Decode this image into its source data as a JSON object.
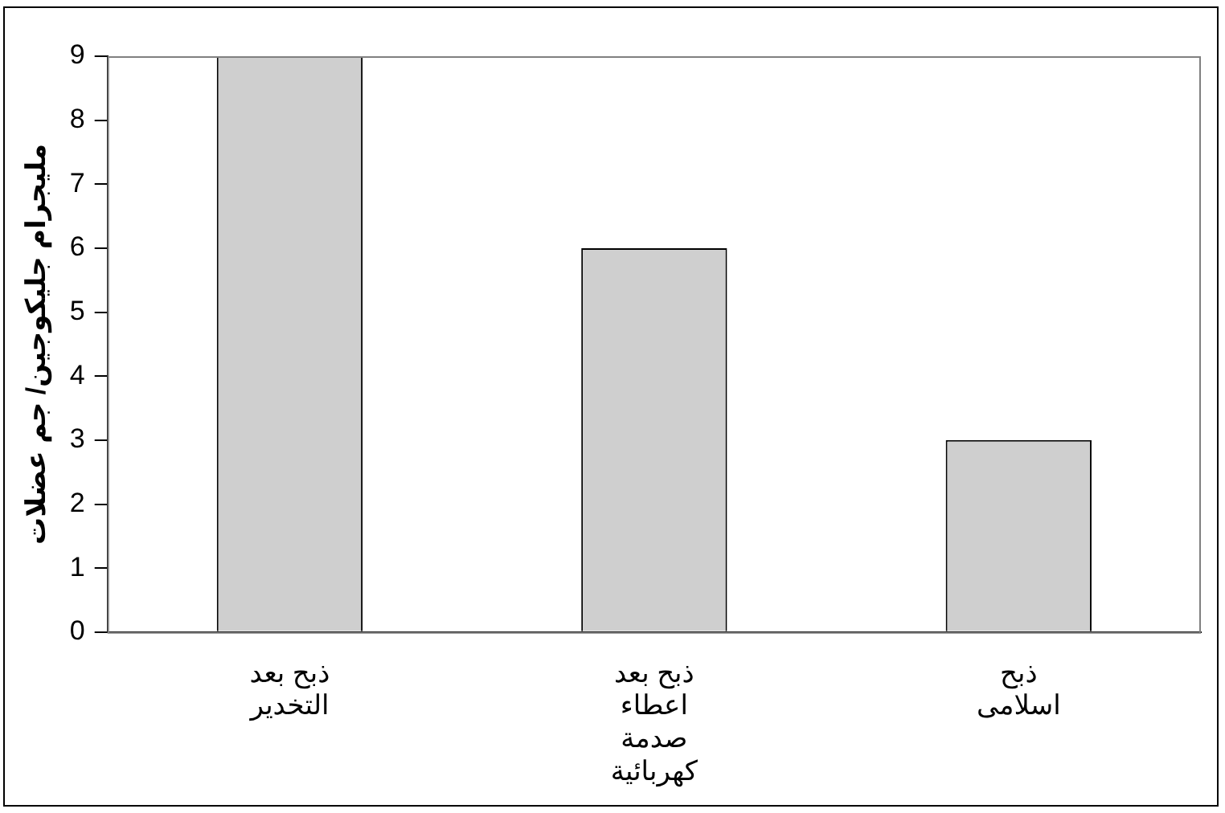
{
  "chart_data": {
    "type": "bar",
    "ylabel": "مليجرام جليكوجين/ جم عضلات",
    "categories": [
      "ذبح بعد\nالتخدير",
      "ذبح بعد\nاعطاء\nصدمة\nكهربائية",
      "ذبح\nاسلامى"
    ],
    "values": [
      9,
      6,
      3
    ],
    "color": "#cfcfcf",
    "ylim": [
      0,
      9
    ],
    "yticks": [
      0,
      1,
      2,
      3,
      4,
      5,
      6,
      7,
      8,
      9
    ],
    "grid": false,
    "legend": false
  }
}
